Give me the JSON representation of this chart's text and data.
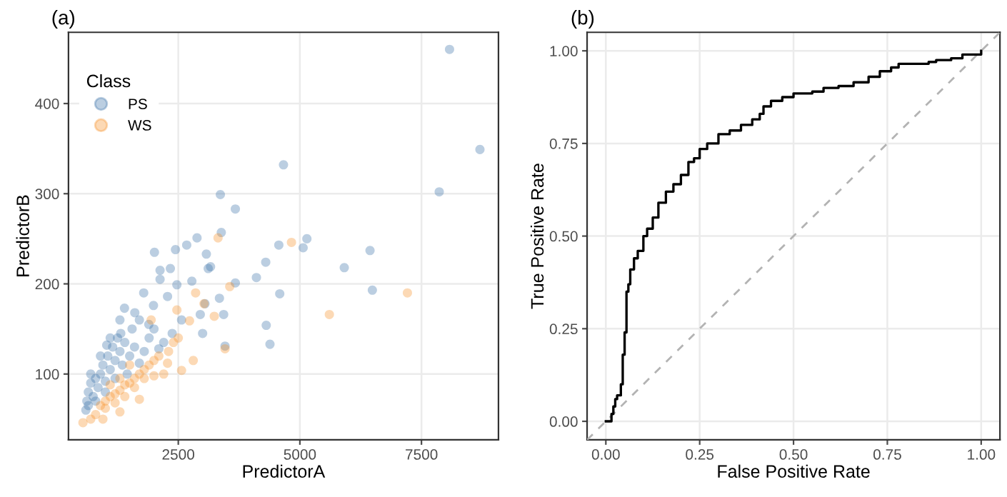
{
  "chart_data": [
    {
      "type": "scatter",
      "title": "(a)",
      "xlabel": "PredictorA",
      "ylabel": "PredictorB",
      "legend_title": "Class",
      "legend": "top left",
      "grid": true,
      "marker": "circle",
      "xlim": [
        242,
        9083
      ],
      "ylim": [
        27,
        479
      ],
      "xticks": [
        2500,
        5000,
        7500
      ],
      "yticks": [
        100,
        200,
        300,
        400
      ],
      "series": [
        {
          "name": "PS",
          "color": "#3d72a8",
          "x": [
            8077,
            8702,
            7865,
            4663,
            3365,
            3673,
            3384,
            2885,
            2673,
            2442,
            2010,
            3077,
            4567,
            5144,
            5067,
            4298,
            3163,
            3115,
            2337,
            2125,
            3673,
            4106,
            2779,
            2125,
            4586,
            5913,
            6442,
            6490,
            4308,
            4385,
            3461,
            3346,
            1394,
            1789,
            2471,
            2279,
            1990,
            1606,
            3048,
            2952,
            3000,
            3433,
            1894,
            1317,
            1029,
            2375,
            2567,
            600,
            620,
            650,
            700,
            750,
            800,
            850,
            900,
            950,
            1000,
            1050,
            1100,
            1150,
            1200,
            1250,
            1300,
            1350,
            1400,
            1500,
            1600,
            1700,
            1800,
            1900,
            2000,
            2100,
            700,
            650,
            800,
            1000,
            1200,
            1450,
            900,
            1100,
            2200,
            1700,
            1550,
            1300
          ],
          "values": [
            460,
            349,
            302,
            332,
            299,
            283,
            257,
            251,
            243,
            238,
            235,
            233,
            243,
            250,
            240,
            224,
            219,
            217,
            217,
            215,
            201,
            207,
            203,
            205,
            189,
            218,
            237,
            193,
            154,
            133,
            131,
            184,
            173,
            190,
            199,
            186,
            176,
            168,
            178,
            166,
            145,
            166,
            155,
            145,
            132,
            145,
            160,
            60,
            70,
            80,
            90,
            75,
            95,
            85,
            100,
            110,
            92,
            120,
            105,
            130,
            115,
            140,
            125,
            110,
            135,
            120,
            130,
            112,
            125,
            140,
            150,
            128,
            100,
            65,
            70,
            80,
            95,
            100,
            120,
            140,
            135,
            160,
            150,
            160
          ]
        },
        {
          "name": "WS",
          "color": "#f5912a",
          "x": [
            3317,
            4827,
            7211,
            5606,
            3558,
            2856,
            3029,
            3461,
            3240,
            2731,
            2471,
            1942,
            2808,
            2567,
            2279,
            540,
            950,
            1300,
            1700,
            900,
            1000,
            1100,
            1200,
            1300,
            1400,
            1500,
            1600,
            1700,
            1800,
            1900,
            2000,
            2100,
            2200,
            2300,
            2400,
            1600,
            1400,
            1200,
            1000,
            800,
            700,
            1800,
            2000,
            1500,
            1300,
            1100,
            2500
          ],
          "values": [
            251,
            246,
            190,
            166,
            197,
            190,
            178,
            128,
            164,
            159,
            171,
            160,
            115,
            104,
            112,
            46,
            50,
            58,
            72,
            65,
            70,
            75,
            78,
            82,
            88,
            90,
            95,
            100,
            105,
            110,
            115,
            120,
            100,
            125,
            135,
            85,
            75,
            68,
            62,
            55,
            50,
            95,
            98,
            110,
            95,
            88,
            140
          ]
        }
      ]
    },
    {
      "type": "step",
      "title": "(b)",
      "xlabel": "False Positive Rate",
      "ylabel": "True Positive Rate",
      "grid": true,
      "xlim": [
        -0.05,
        1.05
      ],
      "ylim": [
        -0.05,
        1.05
      ],
      "xticks": [
        {
          "value": 0,
          "label": "0.00"
        },
        {
          "value": 0.25,
          "label": "0.25"
        },
        {
          "value": 0.5,
          "label": "0.50"
        },
        {
          "value": 0.75,
          "label": "0.75"
        },
        {
          "value": 1,
          "label": "1.00"
        }
      ],
      "yticks": [
        {
          "value": 0,
          "label": "0.00"
        },
        {
          "value": 0.25,
          "label": "0.25"
        },
        {
          "value": 0.5,
          "label": "0.50"
        },
        {
          "value": 0.75,
          "label": "0.75"
        },
        {
          "value": 1,
          "label": "1.00"
        }
      ],
      "series": [
        {
          "type": "step",
          "color": "#000000",
          "line_style": "solid",
          "x": [
            0,
            0.01,
            0.015,
            0.02,
            0.025,
            0.03,
            0.04,
            0.045,
            0.05,
            0.055,
            0.06,
            0.065,
            0.075,
            0.085,
            0.1,
            0.11,
            0.125,
            0.14,
            0.16,
            0.18,
            0.2,
            0.22,
            0.235,
            0.25,
            0.27,
            0.3,
            0.33,
            0.36,
            0.39,
            0.41,
            0.42,
            0.44,
            0.47,
            0.5,
            0.55,
            0.58,
            0.62,
            0.66,
            0.7,
            0.73,
            0.76,
            0.78,
            0.86,
            0.88,
            0.92,
            0.95,
            1.0
          ],
          "values": [
            0,
            0,
            0.02,
            0.04,
            0.06,
            0.07,
            0.1,
            0.18,
            0.24,
            0.35,
            0.37,
            0.41,
            0.44,
            0.46,
            0.5,
            0.52,
            0.55,
            0.59,
            0.62,
            0.64,
            0.665,
            0.7,
            0.71,
            0.735,
            0.75,
            0.775,
            0.785,
            0.8,
            0.815,
            0.83,
            0.85,
            0.865,
            0.875,
            0.885,
            0.89,
            0.9,
            0.905,
            0.915,
            0.93,
            0.945,
            0.955,
            0.965,
            0.97,
            0.975,
            0.98,
            0.99,
            1.0
          ]
        },
        {
          "type": "line",
          "color": "#b3b3b3",
          "line_style": "dashed",
          "x": [
            -0.05,
            1.05
          ],
          "values": [
            -0.05,
            1.05
          ]
        }
      ]
    }
  ]
}
